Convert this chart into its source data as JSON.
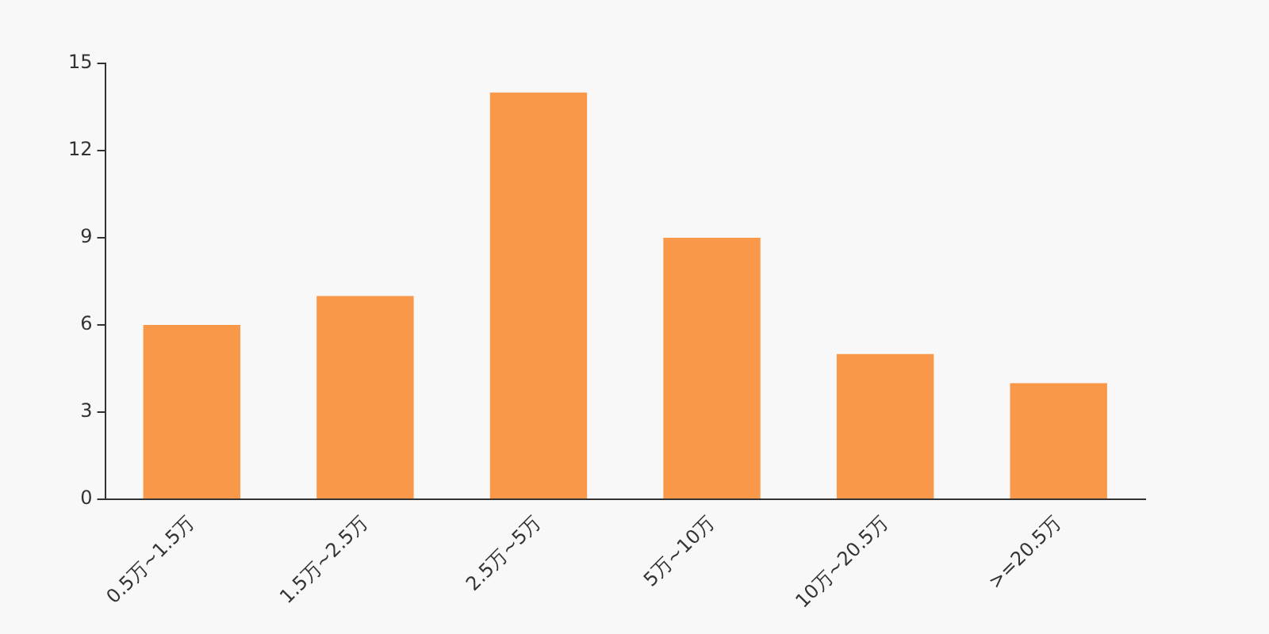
{
  "chart_data": {
    "type": "bar",
    "categories": [
      "0.5万~1.5万",
      "1.5万~2.5万",
      "2.5万~5万",
      "5万~10万",
      "10万~20.5万",
      ">=20.5万"
    ],
    "values": [
      6,
      7,
      14,
      9,
      5,
      4
    ],
    "color": "#f89848",
    "ylim": [
      0,
      15
    ],
    "yticks": [
      0,
      3,
      6,
      9,
      12,
      15
    ],
    "grid": false,
    "legend": false
  }
}
